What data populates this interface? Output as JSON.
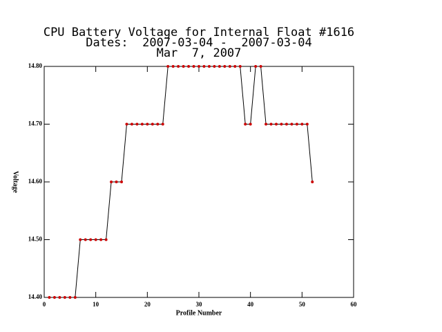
{
  "chart_data": {
    "type": "line",
    "title": [
      "CPU Battery Voltage for Internal Float #1616",
      "Dates:  2007-03-04 -  2007-03-04",
      "Mar  7, 2007"
    ],
    "xlabel": "Profile Number",
    "ylabel": "Voltage",
    "x": [
      1,
      2,
      3,
      4,
      5,
      6,
      7,
      8,
      9,
      10,
      11,
      12,
      13,
      14,
      15,
      16,
      17,
      18,
      19,
      20,
      21,
      22,
      23,
      24,
      25,
      26,
      27,
      28,
      29,
      30,
      31,
      32,
      33,
      34,
      35,
      36,
      37,
      38,
      39,
      40,
      41,
      42,
      43,
      44,
      45,
      46,
      47,
      48,
      49,
      50,
      51,
      52
    ],
    "values": [
      14.4,
      14.4,
      14.4,
      14.4,
      14.4,
      14.4,
      14.5,
      14.5,
      14.5,
      14.5,
      14.5,
      14.5,
      14.6,
      14.6,
      14.6,
      14.7,
      14.7,
      14.7,
      14.7,
      14.7,
      14.7,
      14.7,
      14.7,
      14.8,
      14.8,
      14.8,
      14.8,
      14.8,
      14.8,
      14.8,
      14.8,
      14.8,
      14.8,
      14.8,
      14.8,
      14.8,
      14.8,
      14.8,
      14.7,
      14.7,
      14.8,
      14.8,
      14.7,
      14.7,
      14.7,
      14.7,
      14.7,
      14.7,
      14.7,
      14.7,
      14.7,
      14.6
    ],
    "color": "#000000",
    "marker_color": "#cc0000",
    "xlim": [
      0,
      60
    ],
    "xticks": [
      0,
      10,
      20,
      30,
      40,
      50,
      60
    ],
    "ylim": [
      14.4,
      14.8
    ],
    "yticks": [
      {
        "value": 14.4,
        "label": "14.40"
      },
      {
        "value": 14.5,
        "label": "14.50"
      },
      {
        "value": 14.6,
        "label": "14.60"
      },
      {
        "value": 14.7,
        "label": "14.70"
      },
      {
        "value": 14.8,
        "label": "14.80"
      }
    ]
  }
}
